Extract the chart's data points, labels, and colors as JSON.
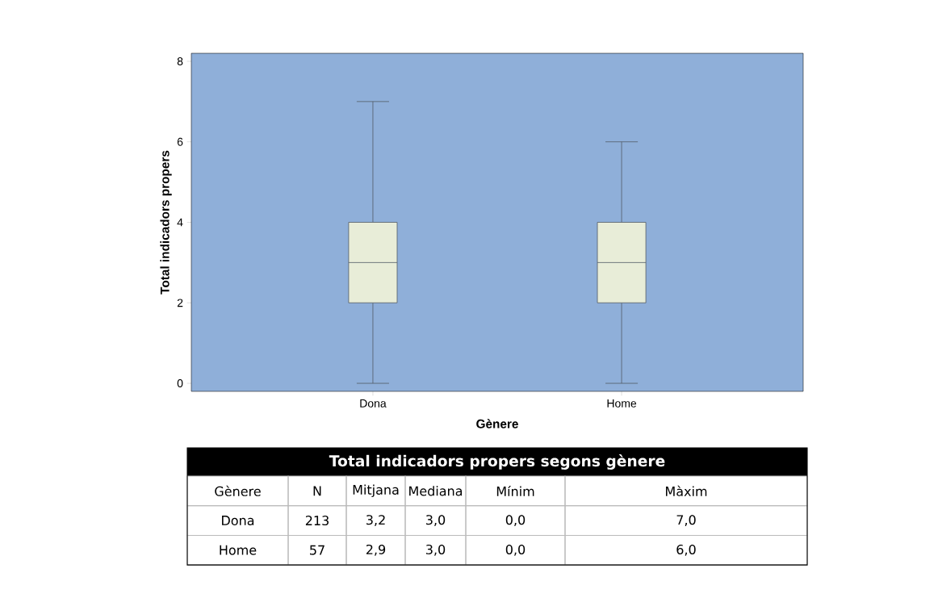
{
  "chart_data": [
    {
      "type": "box",
      "xlabel": "Gènere",
      "ylabel": "Total indicadors propers",
      "categories": [
        "Dona",
        "Home"
      ],
      "color": "#e8edd8",
      "boxes": [
        {
          "low": 0,
          "q1": 2,
          "median": 3,
          "q3": 4,
          "high": 7
        },
        {
          "low": 0,
          "q1": 2,
          "median": 3,
          "q3": 4,
          "high": 6
        }
      ],
      "ylim": [
        -0.2,
        8.2
      ],
      "yticks": [
        0,
        2,
        4,
        6,
        8
      ]
    },
    {
      "type": "other",
      "title": "Total indicadors propers segons gènere",
      "categories": [
        "Gènere",
        "N",
        "Mitjana",
        "Mediana",
        "Mínim",
        "Màxim"
      ],
      "annotations": [
        "Dona",
        "213",
        "3,2",
        "3,0",
        "0,0",
        "7,0",
        "Home",
        "57",
        "2,9",
        "3,0",
        "0,0",
        "6,0"
      ]
    }
  ]
}
